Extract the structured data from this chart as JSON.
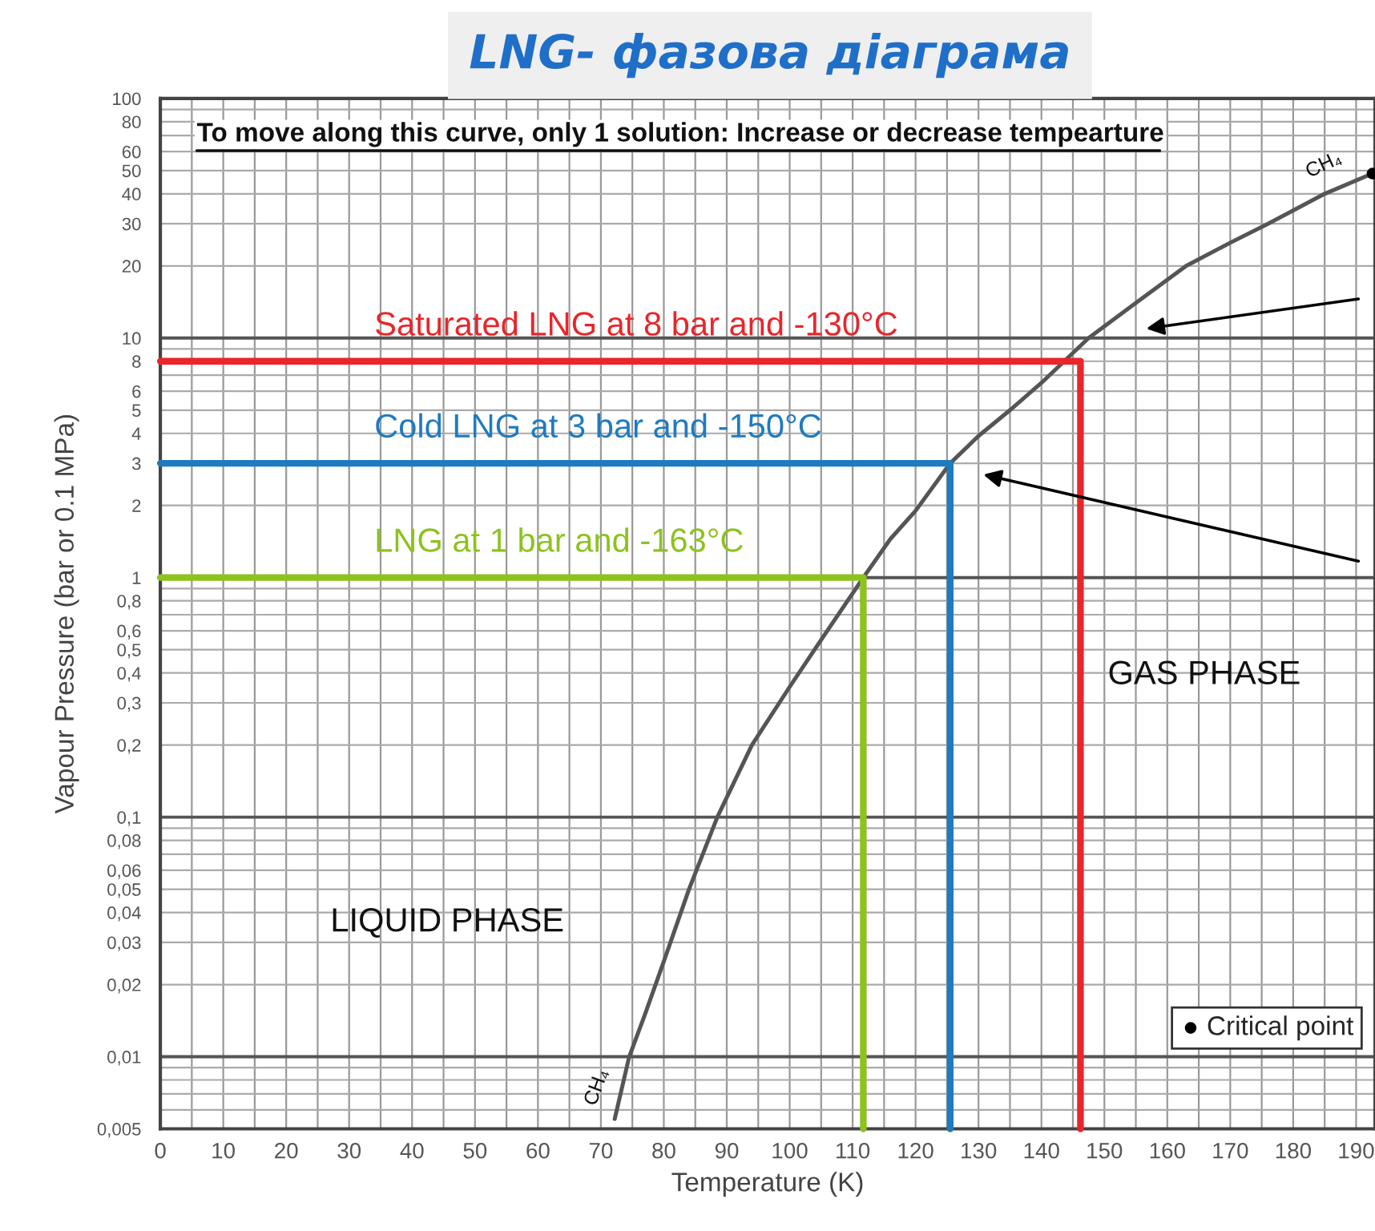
{
  "chart_data": {
    "type": "line",
    "title": "LNG- фазова діаграма",
    "xlabel": "Temperature (K)",
    "ylabel": "Vapour Pressure (bar or 0.1 MPa)",
    "log": "y",
    "grid": true,
    "legend": "bottom right",
    "xlim": [
      0,
      193
    ],
    "ylim": [
      0.005,
      100
    ],
    "xticks": [
      0,
      {
        "value": 5,
        "label": null
      },
      10,
      {
        "value": 15,
        "label": null
      },
      20,
      {
        "value": 25,
        "label": null
      },
      30,
      {
        "value": 35,
        "label": null
      },
      40,
      {
        "value": 45,
        "label": null
      },
      50,
      {
        "value": 55,
        "label": null
      },
      60,
      {
        "value": 65,
        "label": null
      },
      70,
      {
        "value": 75,
        "label": null
      },
      80,
      {
        "value": 85,
        "label": null
      },
      90,
      {
        "value": 95,
        "label": null
      },
      100,
      {
        "value": 105,
        "label": null
      },
      110,
      {
        "value": 115,
        "label": null
      },
      120,
      {
        "value": 125,
        "label": null
      },
      130,
      {
        "value": 135,
        "label": null
      },
      140,
      {
        "value": 145,
        "label": null
      },
      150,
      {
        "value": 155,
        "label": null
      },
      160,
      {
        "value": 165,
        "label": null
      },
      170,
      {
        "value": 175,
        "label": null
      },
      180,
      {
        "value": 185,
        "label": null
      },
      190
    ],
    "yticks": [
      {
        "value": 0.005,
        "label": "0,005"
      },
      {
        "value": 0.006,
        "label": null
      },
      {
        "value": 0.007,
        "label": null
      },
      {
        "value": 0.008,
        "label": null
      },
      {
        "value": 0.009,
        "label": null
      },
      {
        "value": 0.01,
        "label": "0,01"
      },
      {
        "value": 0.02,
        "label": "0,02"
      },
      {
        "value": 0.03,
        "label": "0,03"
      },
      {
        "value": 0.04,
        "label": "0,04"
      },
      {
        "value": 0.05,
        "label": "0,05"
      },
      {
        "value": 0.06,
        "label": "0,06"
      },
      {
        "value": 0.07,
        "label": null
      },
      {
        "value": 0.08,
        "label": "0,08"
      },
      {
        "value": 0.09,
        "label": null
      },
      {
        "value": 0.1,
        "label": "0,1"
      },
      {
        "value": 0.2,
        "label": "0,2"
      },
      {
        "value": 0.3,
        "label": "0,3"
      },
      {
        "value": 0.4,
        "label": "0,4"
      },
      {
        "value": 0.5,
        "label": "0,5"
      },
      {
        "value": 0.6,
        "label": "0,6"
      },
      {
        "value": 0.7,
        "label": null
      },
      {
        "value": 0.8,
        "label": "0,8"
      },
      {
        "value": 0.9,
        "label": null
      },
      1,
      2,
      3,
      4,
      5,
      6,
      {
        "value": 7,
        "label": null
      },
      8,
      {
        "value": 9,
        "label": null
      },
      10,
      20,
      30,
      40,
      50,
      60,
      {
        "value": 70,
        "label": null
      },
      80,
      {
        "value": 90,
        "label": null
      },
      100
    ],
    "series": [
      {
        "color": "#555555",
        "x": [
          72.2,
          74.5,
          77,
          80,
          84,
          88.5,
          94,
          100,
          105,
          111.7,
          116,
          120,
          125.5,
          130,
          135,
          140,
          147.5,
          155,
          163,
          170,
          176,
          185,
          192.6
        ],
        "values": [
          0.0055,
          0.01,
          0.015,
          0.025,
          0.05,
          0.1,
          0.2,
          0.35,
          0.55,
          1,
          1.45,
          1.9,
          3,
          3.9,
          5,
          6.5,
          10,
          14,
          20,
          25,
          30,
          40,
          48.6
        ]
      },
      {
        "type": "line",
        "name": "Saturated LNG at 8 bar and -130°C",
        "color": "#e8262b",
        "x": [
          0,
          146.2,
          146.2
        ],
        "values": [
          8,
          8,
          0.005
        ]
      },
      {
        "type": "line",
        "name": "Cold LNG at 3 bar and -150°C",
        "color": "#1f7bbf",
        "x": [
          0,
          125.5,
          125.5
        ],
        "values": [
          3,
          3,
          0.005
        ]
      },
      {
        "type": "line",
        "name": "LNG at 1 bar and -163°C",
        "color": "#8dc21f",
        "x": [
          0,
          111.7,
          111.7
        ],
        "values": [
          1,
          1,
          0.005
        ]
      },
      {
        "type": "scatter",
        "name": "Critical point",
        "color": "#000000",
        "marker": "circle",
        "x": [
          192.6
        ],
        "values": [
          48.6
        ]
      }
    ],
    "annotations": [
      "To move along this curve, only 1 solution: Increase or decrease tempearture",
      "LIQUID PHASE",
      "GAS PHASE",
      "CH₄",
      "CH₄"
    ]
  }
}
